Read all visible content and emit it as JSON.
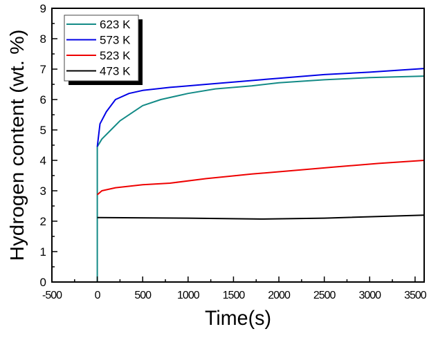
{
  "chart_data": {
    "type": "line",
    "title": "",
    "xlabel": "Time(s)",
    "ylabel": "Hydrogen content (wt. %)",
    "xlim": [
      -500,
      3600
    ],
    "ylim": [
      0,
      9
    ],
    "xticks": [
      -500,
      0,
      500,
      1000,
      1500,
      2000,
      2500,
      3000,
      3500
    ],
    "yticks": [
      0,
      1,
      2,
      3,
      4,
      5,
      6,
      7,
      8,
      9
    ],
    "grid": false,
    "legend_position": "top-left",
    "series": [
      {
        "name": "623 K",
        "color": "#128a86",
        "x": [
          0,
          0,
          50,
          150,
          250,
          400,
          500,
          700,
          1000,
          1300,
          1700,
          2000,
          2500,
          3000,
          3600
        ],
        "y": [
          0,
          4.45,
          4.7,
          5.0,
          5.3,
          5.6,
          5.8,
          6.0,
          6.2,
          6.35,
          6.45,
          6.55,
          6.65,
          6.72,
          6.77
        ]
      },
      {
        "name": "573 K",
        "color": "#0000e6",
        "x": [
          0,
          30,
          100,
          200,
          350,
          500,
          800,
          1200,
          1600,
          2000,
          2500,
          3000,
          3600
        ],
        "y": [
          4.45,
          5.2,
          5.6,
          6.0,
          6.2,
          6.3,
          6.4,
          6.5,
          6.6,
          6.7,
          6.82,
          6.9,
          7.02
        ]
      },
      {
        "name": "523 K",
        "color": "#ee0000",
        "x": [
          0,
          50,
          200,
          500,
          800,
          1200,
          1700,
          2100,
          2600,
          3100,
          3600
        ],
        "y": [
          2.87,
          3.0,
          3.1,
          3.2,
          3.25,
          3.4,
          3.55,
          3.65,
          3.78,
          3.9,
          4.0
        ]
      },
      {
        "name": "473 K",
        "color": "#000000",
        "x": [
          0,
          1000,
          1800,
          2500,
          3600
        ],
        "y": [
          2.12,
          2.1,
          2.07,
          2.1,
          2.2
        ]
      }
    ]
  }
}
